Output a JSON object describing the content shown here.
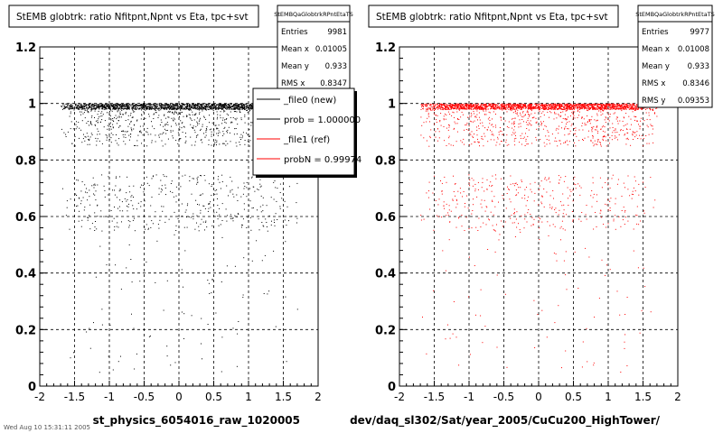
{
  "chart_data": [
    {
      "type": "scatter",
      "title": "StEMB globtrk: ratio Nfitpnt,Npnt vs Eta, tpc+svt",
      "xlabel": "st_physics_6054016_raw_1020005",
      "ylabel": "",
      "xlim": [
        -2,
        2
      ],
      "ylim": [
        0,
        1.2
      ],
      "x_ticks": [
        "-2",
        "-1.5",
        "-1",
        "-0.5",
        "0",
        "0.5",
        "1",
        "1.5",
        "2"
      ],
      "y_ticks": [
        "0",
        "0.2",
        "0.4",
        "0.6",
        "0.8",
        "1",
        "1.2"
      ],
      "grid": true,
      "marker_color": "#000000",
      "stats": {
        "name": "StEMBQaGlobtrkRPntEtaTS",
        "rows": [
          {
            "label": "Entries",
            "value": "9981"
          },
          {
            "label": "Mean x",
            "value": "0.01005"
          },
          {
            "label": "Mean y",
            "value": "0.933"
          },
          {
            "label": "RMS x",
            "value": "0.8347"
          }
        ]
      },
      "legend": {
        "placement": "right",
        "entries": [
          {
            "label": "_file0 (new)",
            "color": "#000000"
          },
          {
            "label": "prob = 1.000000",
            "color": "#000000"
          },
          {
            "label": "_file1 (ref)",
            "color": "#ff0000"
          },
          {
            "label": "probN = 0.99974",
            "color": "#ff0000"
          }
        ]
      },
      "distribution": {
        "x_mean": 0.01005,
        "x_rms": 0.8347,
        "y_mean": 0.933,
        "entries": 9981
      }
    },
    {
      "type": "scatter",
      "title": "StEMB globtrk: ratio Nfitpnt,Npnt vs Eta, tpc+svt",
      "xlabel": "dev/daq_sl302/Sat/year_2005/CuCu200_HighTower/",
      "ylabel": "",
      "xlim": [
        -2,
        2
      ],
      "ylim": [
        0,
        1.2
      ],
      "x_ticks": [
        "-2",
        "-1.5",
        "-1",
        "-0.5",
        "0",
        "0.5",
        "1",
        "1.5",
        "2"
      ],
      "y_ticks": [
        "0",
        "0.2",
        "0.4",
        "0.6",
        "0.8",
        "1",
        "1.2"
      ],
      "grid": true,
      "marker_color": "#ff0000",
      "stats": {
        "name": "StEMBQaGlobtrkRPntEtaTS",
        "rows": [
          {
            "label": "Entries",
            "value": "9977"
          },
          {
            "label": "Mean x",
            "value": "0.01008"
          },
          {
            "label": "Mean y",
            "value": "0.933"
          },
          {
            "label": "RMS x",
            "value": "0.8346"
          },
          {
            "label": "RMS y",
            "value": "0.09353"
          }
        ]
      },
      "distribution": {
        "x_mean": 0.01008,
        "x_rms": 0.8346,
        "y_mean": 0.933,
        "y_rms": 0.09353,
        "entries": 9977
      }
    }
  ],
  "footer_note": "Wed Aug 10 15:31:11 2005"
}
